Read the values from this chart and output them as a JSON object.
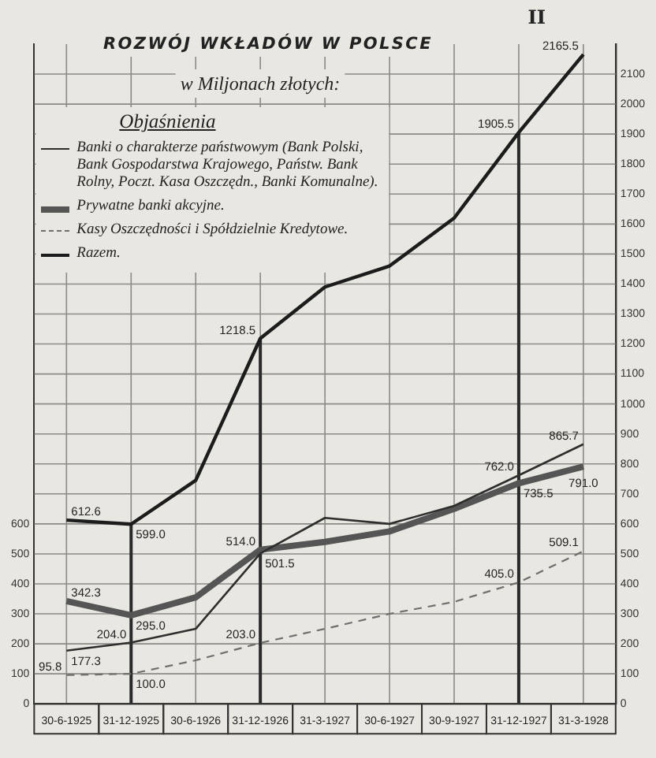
{
  "chart_data": {
    "type": "line",
    "title": "ROZWÓJ WKŁADÓW W POLSCE",
    "subtitle": "w Miljonach złotych:",
    "legend_title": "Objaśnienia",
    "annotations": [
      "II"
    ],
    "categories": [
      "30-6-1925",
      "31-12-1925",
      "30-6-1926",
      "31-12-1926",
      "31-3-1927",
      "30-6-1927",
      "30-9-1927",
      "31-12-1927",
      "31-3-1928"
    ],
    "series": [
      {
        "name": "Banki o charakterze państwowym (Bank Polski, Bank Gospodarstwa Krajowego, Państw. Bank Rolny, Poczt. Kasa Oszczędn., Banki Komunalne).",
        "color": "#2e2e2e",
        "values": [
          177.3,
          204.0,
          250,
          501.5,
          620,
          600,
          660,
          762.0,
          865.7
        ],
        "value_labels": [
          "177.3",
          "204.0",
          null,
          "501.5",
          null,
          null,
          null,
          "762.0",
          "865.7"
        ]
      },
      {
        "name": "Prywatne banki akcyjne.",
        "color": "#555555",
        "values": [
          342.3,
          295.0,
          355,
          514.0,
          540,
          575,
          650,
          735.5,
          791.0
        ],
        "value_labels": [
          "342.3",
          "295.0",
          null,
          "514.0",
          null,
          null,
          null,
          "735.5",
          "791.0"
        ]
      },
      {
        "name": "Kasy Oszczędności i Spółdzielnie Kredytowe.",
        "color": "#6e6e6e",
        "line_style": "dashed",
        "values": [
          95.8,
          100.0,
          145,
          203.0,
          250,
          300,
          340,
          405.0,
          509.1
        ],
        "value_labels": [
          "95.8",
          "100.0",
          null,
          "203.0",
          null,
          null,
          null,
          "405.0",
          "509.1"
        ]
      },
      {
        "name": "Razem.",
        "color": "#1c1c1c",
        "values": [
          612.6,
          599.0,
          745,
          1218.5,
          1390,
          1460,
          1620,
          1905.5,
          2165.5
        ],
        "value_labels": [
          "612.6",
          "599.0",
          null,
          "1218.5",
          null,
          null,
          null,
          "1905.5",
          "2165.5"
        ]
      }
    ],
    "ylim": [
      0,
      2200
    ],
    "yticks": [
      0,
      100,
      200,
      300,
      400,
      500,
      600,
      700,
      800,
      900,
      1000,
      1100,
      1200,
      1300,
      1400,
      1500,
      1600,
      1700,
      1800,
      1900,
      2000,
      2100
    ],
    "y2lim": [
      0,
      2200
    ],
    "y2ticks": [
      0,
      100,
      200,
      300,
      400,
      500,
      600
    ],
    "grid": true,
    "legend": "top left",
    "ref_lines": [
      {
        "axis": "x",
        "value": "31-12-1925",
        "color": "#2a2a2a"
      },
      {
        "axis": "x",
        "value": "31-12-1926",
        "color": "#2a2a2a"
      },
      {
        "axis": "x",
        "value": "31-12-1927",
        "color": "#2a2a2a"
      }
    ]
  }
}
